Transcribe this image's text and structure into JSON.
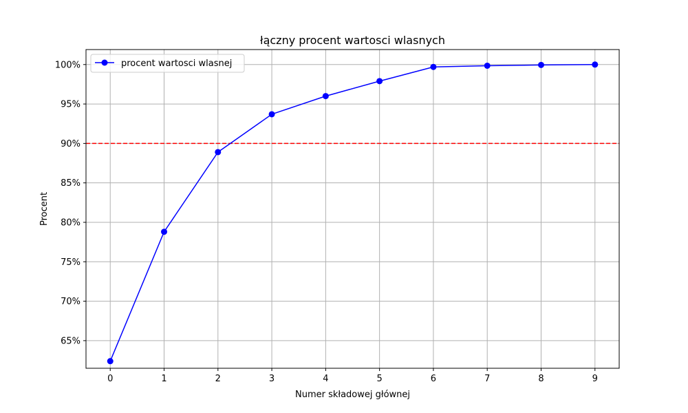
{
  "chart_data": {
    "type": "line",
    "title": "łączny procent wartosci wlasnych",
    "xlabel": "Numer składowej głównej",
    "ylabel": "Procent",
    "x": [
      0,
      1,
      2,
      3,
      4,
      5,
      6,
      7,
      8,
      9
    ],
    "series": [
      {
        "name": "procent wartosci wlasnej",
        "color": "#0000ff",
        "marker": "circle",
        "values": [
          62.4,
          78.8,
          88.9,
          93.7,
          96.0,
          97.9,
          99.7,
          99.85,
          99.95,
          100.0
        ]
      }
    ],
    "reference_line": {
      "y": 90,
      "color": "#ff0000",
      "style": "dashed"
    },
    "xticks": [
      0,
      1,
      2,
      3,
      4,
      5,
      6,
      7,
      8,
      9
    ],
    "yticks": [
      65,
      70,
      75,
      80,
      85,
      90,
      95,
      100
    ],
    "ytick_labels": [
      "65%",
      "70%",
      "75%",
      "80%",
      "85%",
      "90%",
      "95%",
      "100%"
    ],
    "xlim": [
      -0.45,
      9.45
    ],
    "ylim": [
      61.5,
      101.9
    ],
    "grid": true,
    "legend_position": "top-left"
  }
}
